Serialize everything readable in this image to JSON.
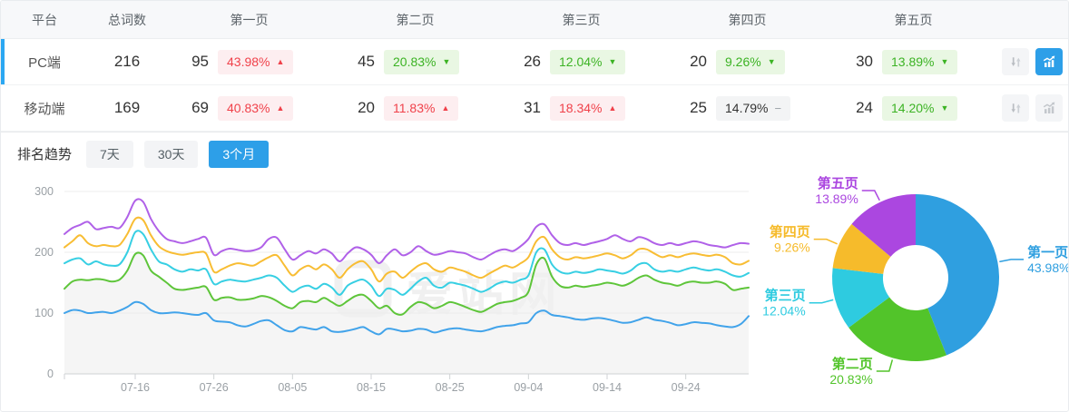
{
  "table": {
    "headers": [
      "平台",
      "总词数",
      "第一页",
      "第二页",
      "第三页",
      "第四页",
      "第五页"
    ],
    "rows": [
      {
        "platform": "PC端",
        "selected": true,
        "total": "216",
        "pages": [
          {
            "count": "95",
            "pct": "43.98%",
            "dir": "up",
            "tone": "red"
          },
          {
            "count": "45",
            "pct": "20.83%",
            "dir": "down",
            "tone": "green"
          },
          {
            "count": "26",
            "pct": "12.04%",
            "dir": "down",
            "tone": "green"
          },
          {
            "count": "20",
            "pct": "9.26%",
            "dir": "down",
            "tone": "green"
          },
          {
            "count": "30",
            "pct": "13.89%",
            "dir": "down",
            "tone": "green"
          }
        ],
        "chart_button_active": true
      },
      {
        "platform": "移动端",
        "selected": false,
        "total": "169",
        "pages": [
          {
            "count": "69",
            "pct": "40.83%",
            "dir": "up",
            "tone": "red"
          },
          {
            "count": "20",
            "pct": "11.83%",
            "dir": "up",
            "tone": "red"
          },
          {
            "count": "31",
            "pct": "18.34%",
            "dir": "up",
            "tone": "red"
          },
          {
            "count": "25",
            "pct": "14.79%",
            "dir": "flat",
            "tone": "gray"
          },
          {
            "count": "24",
            "pct": "14.20%",
            "dir": "down",
            "tone": "green"
          }
        ],
        "chart_button_active": false
      }
    ]
  },
  "trend": {
    "title": "排名趋势",
    "tabs": [
      {
        "label": "7天",
        "active": false
      },
      {
        "label": "30天",
        "active": false
      },
      {
        "label": "3个月",
        "active": true
      }
    ]
  },
  "watermark": "爱站网",
  "colors": {
    "accent_blue": "#2d9fe8",
    "selected_bar": "#2ba7f2",
    "pill_red_text": "#f0414a",
    "pill_green_text": "#3cb324",
    "grid_line": "#ececec",
    "axis_line": "#cfd2d4",
    "axis_text": "#9aa0a5",
    "area_fill": "#f5f5f5"
  },
  "chart_data": [
    {
      "type": "line",
      "title": "排名趋势 3个月",
      "ylim": [
        0,
        300
      ],
      "y_ticks": [
        0,
        100,
        200,
        300
      ],
      "x_tick_labels": [
        "07-16",
        "07-26",
        "08-05",
        "08-15",
        "08-25",
        "09-04",
        "09-14",
        "09-24"
      ],
      "x_tick_indices": [
        9,
        19,
        29,
        39,
        49,
        59,
        69,
        79
      ],
      "grid": true,
      "legend": "none",
      "area_under_series": "第二页",
      "series": [
        {
          "name": "第一页",
          "color": "#41a3ea",
          "values": [
            100,
            105,
            104,
            100,
            101,
            102,
            100,
            104,
            110,
            118,
            115,
            105,
            100,
            100,
            101,
            100,
            98,
            97,
            100,
            88,
            86,
            85,
            80,
            78,
            82,
            87,
            88,
            80,
            72,
            70,
            77,
            75,
            73,
            77,
            70,
            69,
            71,
            74,
            77,
            70,
            65,
            74,
            73,
            70,
            71,
            74,
            73,
            68,
            71,
            74,
            75,
            73,
            71,
            70,
            73,
            77,
            79,
            80,
            83,
            85,
            100,
            104,
            97,
            95,
            93,
            90,
            89,
            91,
            92,
            90,
            87,
            84,
            85,
            89,
            93,
            89,
            87,
            84,
            80,
            82,
            85,
            84,
            83,
            80,
            78,
            77,
            82,
            95
          ]
        },
        {
          "name": "第二页",
          "color": "#5ec53a",
          "values": [
            140,
            152,
            155,
            154,
            156,
            155,
            152,
            155,
            170,
            197,
            195,
            170,
            160,
            150,
            140,
            138,
            140,
            142,
            143,
            122,
            125,
            126,
            122,
            122,
            124,
            128,
            126,
            120,
            112,
            108,
            118,
            120,
            118,
            125,
            118,
            112,
            120,
            128,
            130,
            120,
            108,
            112,
            100,
            98,
            110,
            118,
            115,
            108,
            112,
            118,
            115,
            110,
            105,
            102,
            108,
            115,
            118,
            120,
            125,
            135,
            180,
            190,
            160,
            145,
            142,
            145,
            143,
            145,
            147,
            150,
            148,
            145,
            150,
            158,
            162,
            155,
            150,
            148,
            145,
            150,
            152,
            150,
            150,
            152,
            148,
            138,
            140,
            142
          ]
        },
        {
          "name": "第三页",
          "color": "#37cfe3",
          "values": [
            182,
            188,
            190,
            180,
            185,
            180,
            178,
            180,
            200,
            233,
            230,
            205,
            185,
            180,
            172,
            168,
            172,
            170,
            172,
            148,
            152,
            155,
            153,
            152,
            155,
            158,
            162,
            158,
            145,
            135,
            142,
            145,
            140,
            148,
            142,
            130,
            145,
            152,
            155,
            145,
            128,
            140,
            138,
            130,
            140,
            152,
            158,
            145,
            142,
            150,
            148,
            145,
            140,
            135,
            140,
            148,
            152,
            150,
            155,
            162,
            200,
            205,
            180,
            168,
            165,
            168,
            166,
            168,
            172,
            170,
            168,
            165,
            170,
            180,
            182,
            172,
            168,
            170,
            168,
            172,
            175,
            172,
            170,
            172,
            168,
            162,
            160,
            166
          ]
        },
        {
          "name": "第四页",
          "color": "#f8bd33",
          "values": [
            208,
            218,
            228,
            215,
            210,
            212,
            210,
            212,
            230,
            255,
            253,
            228,
            210,
            202,
            198,
            196,
            198,
            200,
            198,
            168,
            172,
            178,
            182,
            180,
            178,
            185,
            192,
            195,
            178,
            162,
            172,
            178,
            172,
            180,
            172,
            158,
            172,
            182,
            185,
            172,
            152,
            165,
            168,
            158,
            168,
            178,
            182,
            172,
            168,
            175,
            172,
            168,
            162,
            158,
            165,
            172,
            178,
            175,
            182,
            192,
            218,
            225,
            205,
            192,
            188,
            192,
            190,
            192,
            195,
            198,
            195,
            190,
            195,
            205,
            205,
            198,
            192,
            195,
            192,
            196,
            198,
            196,
            194,
            196,
            192,
            182,
            180,
            186
          ]
        },
        {
          "name": "第五页",
          "color": "#b061e8",
          "values": [
            230,
            240,
            245,
            250,
            238,
            240,
            242,
            240,
            258,
            285,
            283,
            255,
            235,
            222,
            218,
            215,
            218,
            222,
            224,
            196,
            202,
            206,
            204,
            202,
            203,
            208,
            222,
            224,
            205,
            188,
            195,
            202,
            198,
            205,
            198,
            185,
            198,
            208,
            205,
            196,
            182,
            195,
            205,
            195,
            200,
            210,
            202,
            196,
            198,
            202,
            200,
            198,
            192,
            188,
            195,
            202,
            205,
            202,
            210,
            222,
            242,
            246,
            228,
            215,
            212,
            215,
            212,
            215,
            218,
            222,
            228,
            222,
            218,
            225,
            222,
            215,
            212,
            215,
            212,
            215,
            218,
            216,
            212,
            210,
            208,
            212,
            215,
            214
          ]
        }
      ]
    },
    {
      "type": "pie",
      "donut": true,
      "labels": [
        "第一页",
        "第二页",
        "第三页",
        "第四页",
        "第五页"
      ],
      "values": [
        43.98,
        20.83,
        12.04,
        9.26,
        13.89
      ],
      "value_labels": [
        "43.98%",
        "20.83%",
        "12.04%",
        "9.26%",
        "13.89%"
      ],
      "colors": [
        "#2f9fe0",
        "#52c42a",
        "#2ecbe0",
        "#f6bb2b",
        "#ab47e0"
      ],
      "start_angle_deg": 0,
      "clockwise": true
    }
  ]
}
